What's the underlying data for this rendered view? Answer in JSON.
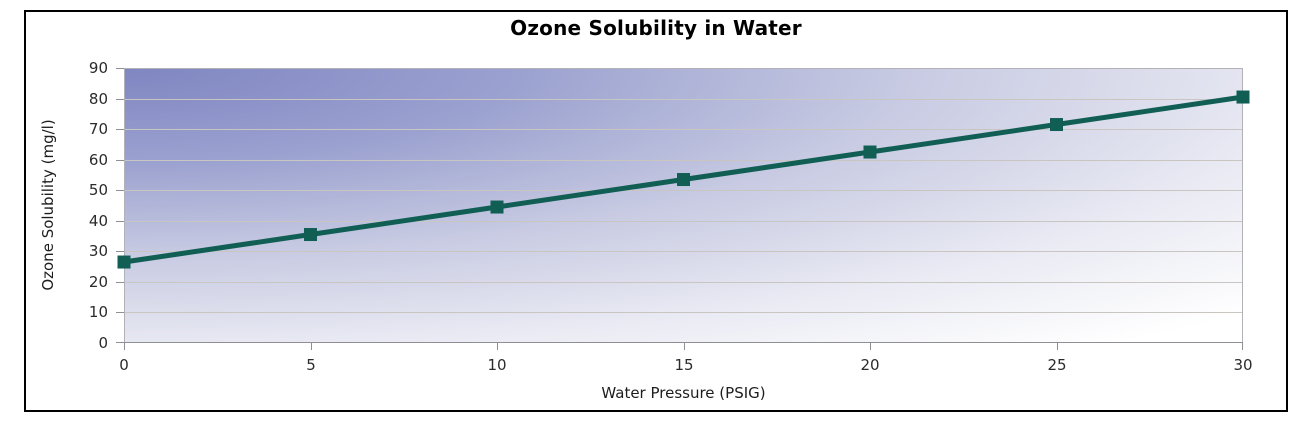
{
  "window": {
    "background": "#ffffff",
    "frame_border_color": "#000000"
  },
  "chart_data": {
    "type": "line",
    "title": "Ozone Solubility in Water",
    "xlabel": "Water Pressure (PSIG)",
    "ylabel": "Ozone Solubility (mg/l)",
    "x": [
      0,
      5,
      10,
      15,
      20,
      25,
      30
    ],
    "series": [
      {
        "name": "Ozone Solubility",
        "values": [
          26.5,
          35.5,
          44.5,
          53.5,
          62.5,
          71.5,
          80.5
        ]
      }
    ],
    "xlim": [
      0,
      30
    ],
    "ylim": [
      0,
      90
    ],
    "x_ticks": [
      0,
      5,
      10,
      15,
      20,
      25,
      30
    ],
    "y_ticks": [
      0,
      10,
      20,
      30,
      40,
      50,
      60,
      70,
      80,
      90
    ],
    "grid": "horizontal",
    "legend": false,
    "marker": "square",
    "colors": {
      "line": "#115e55",
      "marker": "#115e55",
      "gridline": "#c9c6c2",
      "plot_border": "#b3b1b8",
      "axis_line": "#8f8e95",
      "tick_mark": "#8f8e95",
      "tick_label": "#2b2b2b",
      "title": "#000000",
      "gradient_top_left": "#7f86c1",
      "gradient_bottom_right": "#ffffff"
    }
  }
}
